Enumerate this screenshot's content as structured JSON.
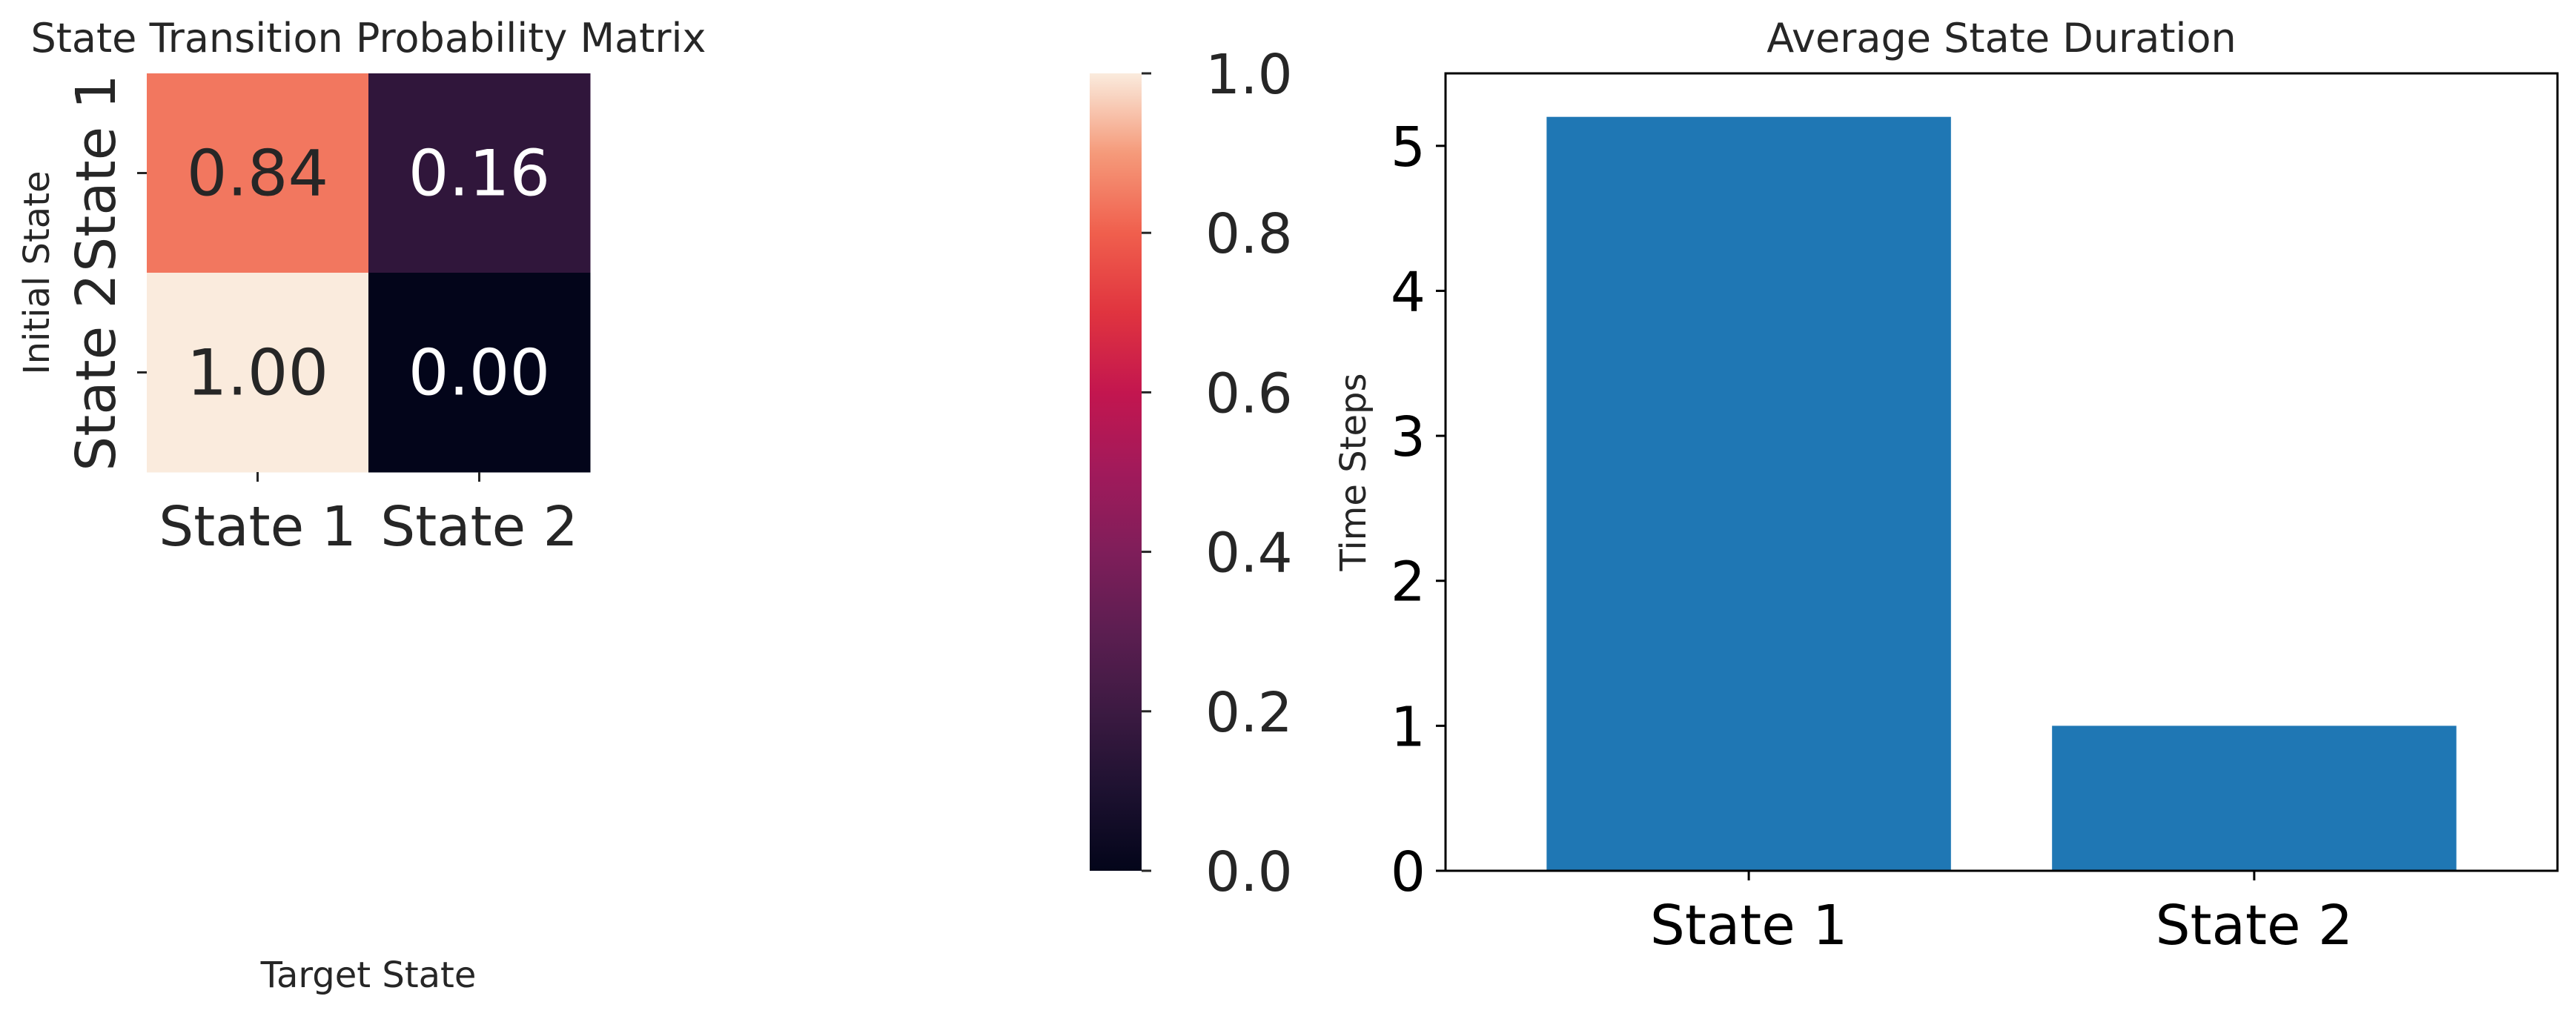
{
  "chart_data": [
    {
      "type": "heatmap",
      "title": "State Transition Probability Matrix",
      "xlabel": "Target State",
      "ylabel": "Initial State",
      "x_categories": [
        "State 1",
        "State 2"
      ],
      "y_categories": [
        "State 1",
        "State 2"
      ],
      "values": [
        [
          0.84,
          0.16
        ],
        [
          1.0,
          0.0
        ]
      ],
      "value_labels": [
        [
          "0.84",
          "0.16"
        ],
        [
          "1.00",
          "0.00"
        ]
      ],
      "colorbar": {
        "range": [
          0.0,
          1.0
        ],
        "ticks": [
          0.0,
          0.2,
          0.4,
          0.6,
          0.8,
          1.0
        ],
        "tick_labels": [
          "0.0",
          "0.2",
          "0.4",
          "0.6",
          "0.8",
          "1.0"
        ],
        "colormap": "rocket"
      }
    },
    {
      "type": "bar",
      "title": "Average State Duration",
      "xlabel": "",
      "ylabel": "Time Steps",
      "categories": [
        "State 1",
        "State 2"
      ],
      "values": [
        5.2,
        1.0
      ],
      "ylim": [
        0,
        5.5
      ],
      "yticks": [
        0,
        1,
        2,
        3,
        4,
        5
      ],
      "ytick_labels": [
        "0",
        "1",
        "2",
        "3",
        "4",
        "5"
      ],
      "bar_color": "#1f77b4",
      "grid": false
    }
  ]
}
